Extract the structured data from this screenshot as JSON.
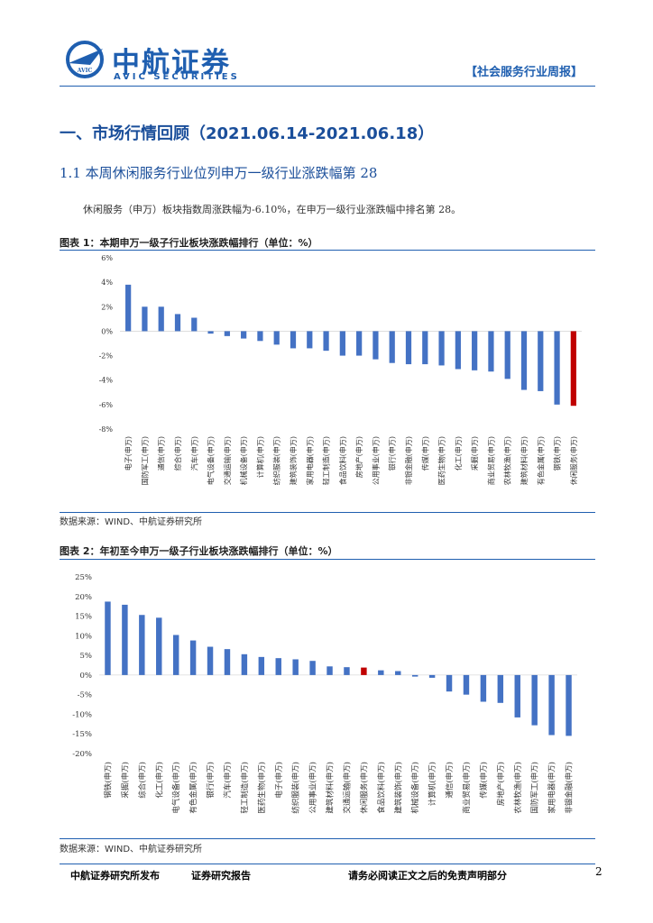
{
  "header": {
    "logo_name": "中航证券",
    "logo_en": "AVIC SECURITIES",
    "logo_badge": "AVIC",
    "report_type": "【社会服务行业周报】"
  },
  "section": {
    "heading": "一、市场行情回顾（2021.06.14-2021.06.18）",
    "subheading": "1.1 本周休闲服务行业位列申万一级行业涨跌幅第 28",
    "paragraph": "休闲服务（申万）板块指数周涨跌幅为-6.10%，在申万一级行业涨跌幅中排名第 28。"
  },
  "chart_data": [
    {
      "type": "bar",
      "caption": "图表 1：本期申万一级子行业板块涨跌幅排行（单位：%）",
      "categories": [
        "电子(申万)",
        "国防军工(申万)",
        "通信(申万)",
        "综合(申万)",
        "汽车(申万)",
        "电气设备(申万)",
        "交通运输(申万)",
        "机械设备(申万)",
        "计算机(申万)",
        "纺织服装(申万)",
        "建筑装饰(申万)",
        "家用电器(申万)",
        "轻工制造(申万)",
        "食品饮料(申万)",
        "房地产(申万)",
        "公用事业(申万)",
        "银行(申万)",
        "非银金融(申万)",
        "传媒(申万)",
        "医药生物(申万)",
        "化工(申万)",
        "采掘(申万)",
        "商业贸易(申万)",
        "农林牧渔(申万)",
        "建筑材料(申万)",
        "有色金属(申万)",
        "钢铁(申万)",
        "休闲服务(申万)"
      ],
      "values": [
        3.8,
        2.0,
        2.0,
        1.4,
        1.1,
        -0.2,
        -0.4,
        -0.6,
        -0.8,
        -1.1,
        -1.4,
        -1.4,
        -1.6,
        -2.0,
        -2.0,
        -2.3,
        -2.6,
        -2.7,
        -2.7,
        -2.8,
        -3.1,
        -3.2,
        -3.3,
        -3.9,
        -4.8,
        -4.9,
        -6.0,
        -6.1
      ],
      "colors": [
        "#4472c4",
        "#4472c4",
        "#4472c4",
        "#4472c4",
        "#4472c4",
        "#4472c4",
        "#4472c4",
        "#4472c4",
        "#4472c4",
        "#4472c4",
        "#4472c4",
        "#4472c4",
        "#4472c4",
        "#4472c4",
        "#4472c4",
        "#4472c4",
        "#4472c4",
        "#4472c4",
        "#4472c4",
        "#4472c4",
        "#4472c4",
        "#4472c4",
        "#4472c4",
        "#4472c4",
        "#4472c4",
        "#4472c4",
        "#4472c4",
        "#c00000"
      ],
      "ylim": [
        -8,
        6
      ],
      "yticks": [
        {
          "value": -8,
          "label": "-8%"
        },
        {
          "value": -6,
          "label": "-6%"
        },
        {
          "value": -4,
          "label": "-4%"
        },
        {
          "value": -2,
          "label": "-2%"
        },
        {
          "value": 0,
          "label": "0%"
        },
        {
          "value": 2,
          "label": "2%"
        },
        {
          "value": 4,
          "label": "4%"
        },
        {
          "value": 6,
          "label": "6%"
        }
      ],
      "source": "数据来源：WIND、中航证券研究所"
    },
    {
      "type": "bar",
      "caption": "图表 2：年初至今申万一级子行业板块涨跌幅排行（单位：%）",
      "categories": [
        "钢铁(申万)",
        "采掘(申万)",
        "综合(申万)",
        "化工(申万)",
        "电气设备(申万)",
        "有色金属(申万)",
        "银行(申万)",
        "汽车(申万)",
        "轻工制造(申万)",
        "医药生物(申万)",
        "电子(申万)",
        "纺织服装(申万)",
        "公用事业(申万)",
        "建筑材料(申万)",
        "交通运输(申万)",
        "休闲服务(申万)",
        "食品饮料(申万)",
        "建筑装饰(申万)",
        "机械设备(申万)",
        "计算机(申万)",
        "通信(申万)",
        "商业贸易(申万)",
        "传媒(申万)",
        "房地产(申万)",
        "农林牧渔(申万)",
        "国防军工(申万)",
        "家用电器(申万)",
        "非银金融(申万)"
      ],
      "values": [
        18.7,
        17.9,
        15.3,
        14.6,
        10.2,
        8.8,
        7.2,
        6.6,
        5.3,
        4.6,
        4.3,
        4.0,
        3.6,
        2.2,
        2.0,
        1.9,
        1.2,
        1.0,
        -0.4,
        -0.7,
        -4.2,
        -5.0,
        -6.8,
        -7.1,
        -10.8,
        -12.8,
        -15.3,
        -15.5
      ],
      "colors": [
        "#4472c4",
        "#4472c4",
        "#4472c4",
        "#4472c4",
        "#4472c4",
        "#4472c4",
        "#4472c4",
        "#4472c4",
        "#4472c4",
        "#4472c4",
        "#4472c4",
        "#4472c4",
        "#4472c4",
        "#4472c4",
        "#4472c4",
        "#c00000",
        "#4472c4",
        "#4472c4",
        "#4472c4",
        "#4472c4",
        "#4472c4",
        "#4472c4",
        "#4472c4",
        "#4472c4",
        "#4472c4",
        "#4472c4",
        "#4472c4",
        "#4472c4"
      ],
      "ylim": [
        -20,
        25
      ],
      "yticks": [
        {
          "value": -20,
          "label": "-20%"
        },
        {
          "value": -15,
          "label": "-15%"
        },
        {
          "value": -10,
          "label": "-10%"
        },
        {
          "value": -5,
          "label": "-5%"
        },
        {
          "value": 0,
          "label": "0%"
        },
        {
          "value": 5,
          "label": "5%"
        },
        {
          "value": 10,
          "label": "10%"
        },
        {
          "value": 15,
          "label": "15%"
        },
        {
          "value": 20,
          "label": "20%"
        },
        {
          "value": 25,
          "label": "25%"
        }
      ],
      "source": "数据来源：WIND、中航证券研究所"
    }
  ],
  "footer": {
    "publisher": "中航证券研究所发布",
    "report": "证券研究报告",
    "disclaimer": "请务必阅读正文之后的免责声明部分",
    "page": 2
  }
}
